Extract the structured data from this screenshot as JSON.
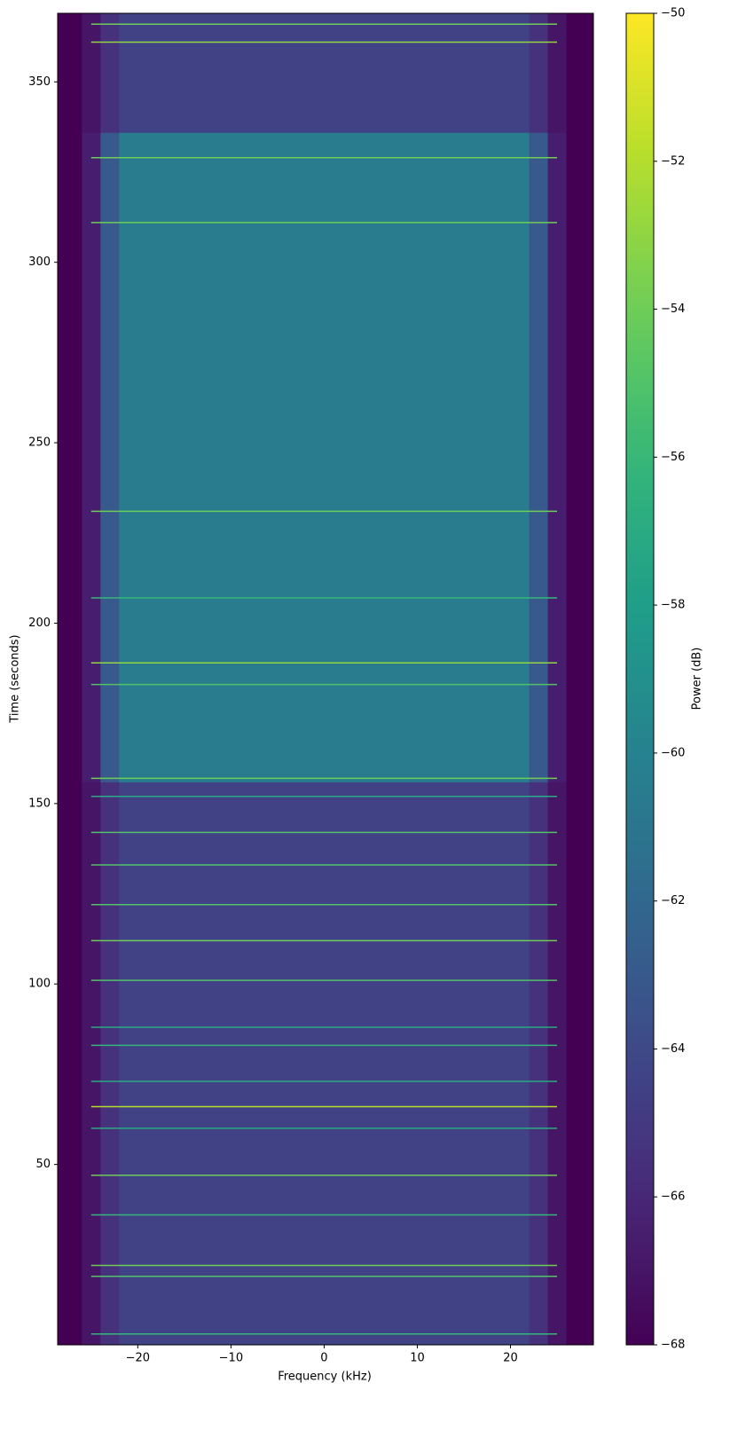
{
  "chart_data": {
    "type": "heatmap",
    "xlabel": "Frequency (kHz)",
    "ylabel": "Time (seconds)",
    "colorbar_label": "Power (dB)",
    "xlim": [
      -28.6,
      28.9
    ],
    "ylim": [
      0,
      369
    ],
    "xticks": [
      {
        "value": -20,
        "label": "−20"
      },
      {
        "value": -10,
        "label": "−10"
      },
      0,
      10,
      20
    ],
    "yticks": [
      50,
      100,
      150,
      200,
      250,
      300,
      350
    ],
    "colormap": "viridis",
    "clim": [
      -68,
      -50
    ],
    "cticks": [
      {
        "value": -68,
        "label": "−68"
      },
      {
        "value": -66,
        "label": "−66"
      },
      {
        "value": -64,
        "label": "−64"
      },
      {
        "value": -62,
        "label": "−62"
      },
      {
        "value": -60,
        "label": "−60"
      },
      {
        "value": -58,
        "label": "−58"
      },
      {
        "value": -56,
        "label": "−56"
      },
      {
        "value": -54,
        "label": "−54"
      },
      {
        "value": -52,
        "label": "−52"
      },
      {
        "value": -50,
        "label": "−50"
      }
    ],
    "x": [
      -28.6,
      -26,
      -24,
      -22,
      22,
      24,
      26,
      28.9
    ],
    "y": [
      0,
      156,
      336,
      369
    ],
    "z": [
      [
        -68,
        -67,
        -65.5,
        -64.5,
        -65.5,
        -67,
        -68
      ],
      [
        -68,
        -66.5,
        -63,
        -60.5,
        -63,
        -66.5,
        -68
      ],
      [
        -68,
        -67,
        -65.5,
        -64.5,
        -65.5,
        -67,
        -68
      ]
    ],
    "lines": {
      "xlim": [
        -25,
        25
      ],
      "times": [
        3,
        19,
        22,
        36,
        47,
        60,
        66,
        73,
        83,
        88,
        101,
        112,
        122,
        133,
        142,
        152,
        157,
        183,
        189,
        207,
        231,
        311,
        329,
        361,
        366
      ],
      "values": [
        -56,
        -55,
        -54,
        -56,
        -54,
        -57,
        -52,
        -57,
        -56,
        -57,
        -55,
        -54,
        -55,
        -55,
        -55,
        -57,
        -54,
        -55,
        -53,
        -56,
        -54,
        -54,
        -54,
        -53,
        -54
      ]
    }
  }
}
